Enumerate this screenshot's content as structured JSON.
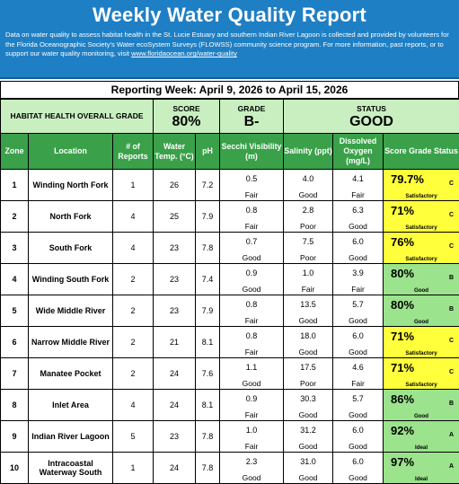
{
  "title": "Weekly Water Quality Report",
  "description": "Data on water quality to assess habitat health in the St. Lucie Estuary and southern Indian River Lagoon is collected and provided by volunteers for the Florida Oceanographic Society's Water ecoSystem Surveys (FLOWSS) community science program.  For more information, past reports, or to support our water quality monitoring, visit ",
  "link_text": "www.floridaocean.org/water-quality",
  "reporting_week": "Reporting Week: April 9, 2026 to April 15, 2026",
  "summary": {
    "habitat_label": "HABITAT HEALTH OVERALL GRADE",
    "score_label": "SCORE",
    "score_value": "80%",
    "grade_label": "GRADE",
    "grade_value": "B-",
    "status_label": "STATUS",
    "status_value": "GOOD"
  },
  "columns": [
    "Zone",
    "Location",
    "# of Reports",
    "Water Temp. (°C)",
    "pH",
    "Secchi Visibility (m)",
    "Salinity (ppt)",
    "Dissolved Oxygen (mg/L)",
    "Score   Grade Status"
  ],
  "colors": {
    "header_blue": "#1f7fc4",
    "col_green": "#3aa14a",
    "summary_green": "#c9efc0",
    "yellow": "#ffff3b",
    "good_green": "#9be38c"
  },
  "rows": [
    {
      "zone": "1",
      "location": "Winding North Fork",
      "reports": "1",
      "temp": "26",
      "ph": "7.2",
      "secchi": "0.5",
      "secchi_r": "Fair",
      "salinity": "4.0",
      "salinity_r": "Good",
      "do": "4.1",
      "do_r": "Fair",
      "score": "79.7%",
      "grade": "C",
      "status": "Satisfactory",
      "color": "yellow"
    },
    {
      "zone": "2",
      "location": "North Fork",
      "reports": "4",
      "temp": "25",
      "ph": "7.9",
      "secchi": "0.8",
      "secchi_r": "Fair",
      "salinity": "2.8",
      "salinity_r": "Poor",
      "do": "6.3",
      "do_r": "Good",
      "score": "71%",
      "grade": "C",
      "status": "Satisfactory",
      "color": "yellow"
    },
    {
      "zone": "3",
      "location": "South Fork",
      "reports": "4",
      "temp": "23",
      "ph": "7.8",
      "secchi": "0.7",
      "secchi_r": "Good",
      "salinity": "7.5",
      "salinity_r": "Poor",
      "do": "6.0",
      "do_r": "Good",
      "score": "76%",
      "grade": "C",
      "status": "Satisfactory",
      "color": "yellow"
    },
    {
      "zone": "4",
      "location": "Winding South Fork",
      "reports": "2",
      "temp": "23",
      "ph": "7.4",
      "secchi": "0.9",
      "secchi_r": "Good",
      "salinity": "1.0",
      "salinity_r": "Fair",
      "do": "3.9",
      "do_r": "Fair",
      "score": "80%",
      "grade": "B",
      "status": "Good",
      "color": "green"
    },
    {
      "zone": "5",
      "location": "Wide Middle River",
      "reports": "2",
      "temp": "23",
      "ph": "7.9",
      "secchi": "0.8",
      "secchi_r": "Fair",
      "salinity": "13.5",
      "salinity_r": "Good",
      "do": "5.7",
      "do_r": "Good",
      "score": "80%",
      "grade": "B",
      "status": "Good",
      "color": "green"
    },
    {
      "zone": "6",
      "location": "Narrow Middle River",
      "reports": "2",
      "temp": "21",
      "ph": "8.1",
      "secchi": "0.8",
      "secchi_r": "Fair",
      "salinity": "18.0",
      "salinity_r": "Good",
      "do": "6.0",
      "do_r": "Good",
      "score": "71%",
      "grade": "C",
      "status": "Satisfactory",
      "color": "yellow"
    },
    {
      "zone": "7",
      "location": "Manatee Pocket",
      "reports": "2",
      "temp": "24",
      "ph": "7.6",
      "secchi": "1.1",
      "secchi_r": "Good",
      "salinity": "17.5",
      "salinity_r": "Poor",
      "do": "4.6",
      "do_r": "Fair",
      "score": "71%",
      "grade": "C",
      "status": "Satisfactory",
      "color": "yellow"
    },
    {
      "zone": "8",
      "location": "Inlet Area",
      "reports": "4",
      "temp": "24",
      "ph": "8.1",
      "secchi": "0.9",
      "secchi_r": "Fair",
      "salinity": "30.3",
      "salinity_r": "Good",
      "do": "5.7",
      "do_r": "Good",
      "score": "86%",
      "grade": "B",
      "status": "Good",
      "color": "green"
    },
    {
      "zone": "9",
      "location": "Indian River Lagoon",
      "reports": "5",
      "temp": "23",
      "ph": "7.8",
      "secchi": "1.0",
      "secchi_r": "Fair",
      "salinity": "31.2",
      "salinity_r": "Good",
      "do": "6.0",
      "do_r": "Good",
      "score": "92%",
      "grade": "A",
      "status": "Ideal",
      "color": "green"
    },
    {
      "zone": "10",
      "location": "Intracoastal Waterway South",
      "reports": "1",
      "temp": "24",
      "ph": "7.8",
      "secchi": "2.3",
      "secchi_r": "Good",
      "salinity": "31.0",
      "salinity_r": "Good",
      "do": "6.0",
      "do_r": "Good",
      "score": "97%",
      "grade": "A",
      "status": "Ideal",
      "color": "green"
    }
  ]
}
